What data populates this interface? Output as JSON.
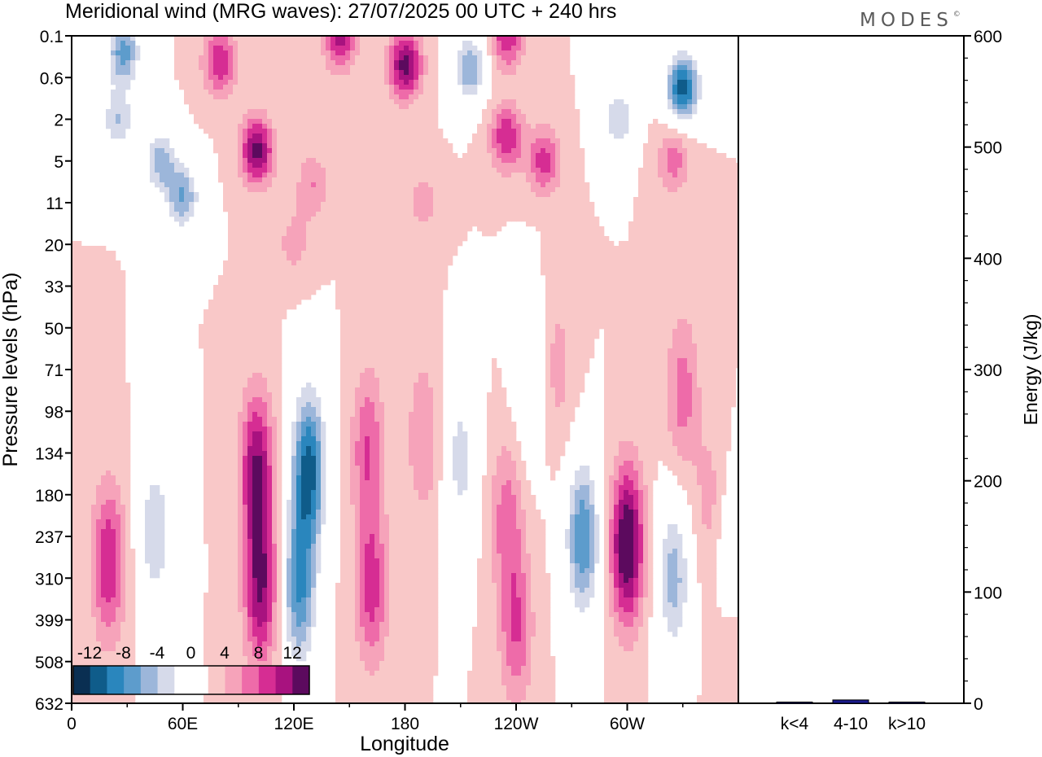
{
  "chart_data": {
    "type": "heatmap",
    "title": "Meridional wind (MRG waves):",
    "date": "27/07/2025",
    "time": "00 UTC",
    "lead": "+ 240 hrs",
    "brand": "MODES",
    "brand_mark": "©",
    "xlabel": "Longitude",
    "x_ticks": [
      "0",
      "60E",
      "120E",
      "180",
      "120W",
      "60W"
    ],
    "x_tick_deg": [
      0,
      60,
      120,
      180,
      240,
      300
    ],
    "ylabel": "Pressure levels (hPa)",
    "y_ticks": [
      "0.1",
      "0.6",
      "2",
      "5",
      "11",
      "20",
      "33",
      "50",
      "71",
      "98",
      "134",
      "180",
      "237",
      "310",
      "399",
      "508",
      "632"
    ],
    "colorbar_labels": [
      "-12",
      "-8",
      "-4",
      "0",
      "4",
      "8",
      "12"
    ],
    "colorbar_levels": [
      -14,
      -12,
      -10,
      -8,
      -6,
      -4,
      -2,
      0,
      2,
      4,
      6,
      8,
      10,
      12,
      14
    ],
    "colors": {
      "neg": [
        "#0a2f52",
        "#0f5c8a",
        "#2a86bd",
        "#5d9ccc",
        "#9cb6da",
        "#d6daea"
      ],
      "zero": "#ffffff",
      "pos": [
        "#f9c8c8",
        "#f6a3ba",
        "#ee6ba9",
        "#d62d93",
        "#a8127f",
        "#5c0a5e"
      ]
    },
    "field_features": [
      {
        "lon": 28,
        "p": 0.2,
        "value": -9
      },
      {
        "lon": 80,
        "p": 0.3,
        "value": 8
      },
      {
        "lon": 145,
        "p": 0.1,
        "value": 9
      },
      {
        "lon": 180,
        "p": 0.35,
        "value": 11
      },
      {
        "lon": 215,
        "p": 0.4,
        "value": -8
      },
      {
        "lon": 235,
        "p": 0.1,
        "value": 8
      },
      {
        "lon": 330,
        "p": 0.8,
        "value": -13
      },
      {
        "lon": 100,
        "p": 4,
        "value": 11
      },
      {
        "lon": 48,
        "p": 5,
        "value": -7
      },
      {
        "lon": 25,
        "p": 2,
        "value": -6
      },
      {
        "lon": 235,
        "p": 3,
        "value": 8
      },
      {
        "lon": 255,
        "p": 5,
        "value": 7
      },
      {
        "lon": 325,
        "p": 5,
        "value": 5
      },
      {
        "lon": 295,
        "p": 2,
        "value": -6
      },
      {
        "lon": 60,
        "p": 10,
        "value": -8
      },
      {
        "lon": 130,
        "p": 8,
        "value": 4
      },
      {
        "lon": 190,
        "p": 11,
        "value": 3
      },
      {
        "lon": 120,
        "p": 20,
        "value": 3
      },
      {
        "lon": 330,
        "p": 85,
        "value": 5
      },
      {
        "lon": 248,
        "p": 78,
        "value": -4
      },
      {
        "lon": 262,
        "p": 70,
        "value": 3
      },
      {
        "lon": 160,
        "p": 130,
        "value": 6
      },
      {
        "lon": 20,
        "p": 280,
        "value": 8
      },
      {
        "lon": 45,
        "p": 230,
        "value": -6
      },
      {
        "lon": 100,
        "p": 150,
        "value": 10
      },
      {
        "lon": 102,
        "p": 330,
        "value": 10
      },
      {
        "lon": 128,
        "p": 150,
        "value": -13
      },
      {
        "lon": 123,
        "p": 330,
        "value": -10
      },
      {
        "lon": 162,
        "p": 330,
        "value": 7
      },
      {
        "lon": 190,
        "p": 120,
        "value": 4
      },
      {
        "lon": 210,
        "p": 140,
        "value": -5
      },
      {
        "lon": 235,
        "p": 210,
        "value": 5
      },
      {
        "lon": 240,
        "p": 420,
        "value": 6
      },
      {
        "lon": 276,
        "p": 240,
        "value": -10
      },
      {
        "lon": 300,
        "p": 250,
        "value": 13
      },
      {
        "lon": 325,
        "p": 310,
        "value": -7
      },
      {
        "lon": 355,
        "p": 260,
        "value": -3
      },
      {
        "lon": 345,
        "p": 190,
        "value": 3
      },
      {
        "lon": 355,
        "p": 520,
        "value": 2
      }
    ],
    "side_panel": {
      "type": "bar",
      "categories": [
        "k<4",
        "4-10",
        "k>10"
      ],
      "values": [
        0,
        3,
        0
      ],
      "ylabel": "Energy (J/kg)",
      "ylim": [
        0,
        600
      ],
      "y_ticks": [
        "0",
        "100",
        "200",
        "300",
        "400",
        "500",
        "600"
      ],
      "bar_color": "#1a1a8c"
    }
  }
}
